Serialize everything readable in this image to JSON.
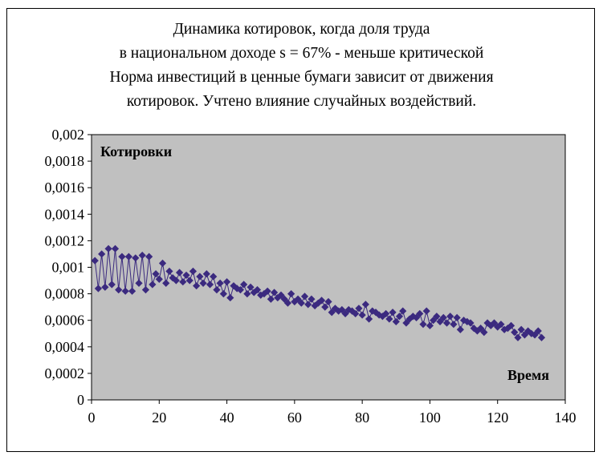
{
  "chart_data": {
    "type": "line",
    "title_lines": [
      "Динамика котировок, когда доля труда",
      "в национальном доходе s = 67% - меньше критической",
      "Норма инвестиций в ценные бумаги зависит от движения",
      "котировок. Учтено влияние случайных воздействий."
    ],
    "ylabel": "Котировки",
    "xlabel": "Время",
    "xlim": [
      0,
      140
    ],
    "ylim": [
      0,
      0.002
    ],
    "x_ticks": [
      "0",
      "20",
      "40",
      "60",
      "80",
      "100",
      "120",
      "140"
    ],
    "y_ticks": [
      "0",
      "0,0002",
      "0,0004",
      "0,0006",
      "0,0008",
      "0,001",
      "0,0012",
      "0,0014",
      "0,0016",
      "0,0018",
      "0,002"
    ],
    "grid": false,
    "plot_background": "#c0c0c0",
    "series_color": "#3b2a7f",
    "marker": "diamond",
    "series": [
      {
        "x": [
          1,
          2,
          3,
          4,
          5,
          6,
          7,
          8,
          9,
          10,
          11,
          12,
          13,
          14,
          15,
          16,
          17,
          18,
          19,
          20,
          21,
          22,
          23,
          24,
          25,
          26,
          27,
          28,
          29,
          30,
          31,
          32,
          33,
          34,
          35,
          36,
          37,
          38,
          39,
          40,
          41,
          42,
          43,
          44,
          45,
          46,
          47,
          48,
          49,
          50,
          51,
          52,
          53,
          54,
          55,
          56,
          57,
          58,
          59,
          60,
          61,
          62,
          63,
          64,
          65,
          66,
          67,
          68,
          69,
          70,
          71,
          72,
          73,
          74,
          75,
          76,
          77,
          78,
          79,
          80,
          81,
          82,
          83,
          84,
          85,
          86,
          87,
          88,
          89,
          90,
          91,
          92,
          93,
          94,
          95,
          96,
          97,
          98,
          99,
          100,
          101,
          102,
          103,
          104,
          105,
          106,
          107,
          108,
          109,
          110,
          111,
          112,
          113,
          114,
          115,
          116,
          117,
          118,
          119,
          120,
          121,
          122,
          123,
          124,
          125,
          126,
          127,
          128,
          129,
          130,
          131,
          132,
          133
        ],
        "values": [
          0.00105,
          0.00084,
          0.0011,
          0.00085,
          0.00114,
          0.00087,
          0.00114,
          0.00083,
          0.00108,
          0.00082,
          0.00108,
          0.00082,
          0.00107,
          0.00088,
          0.00109,
          0.00083,
          0.00108,
          0.00087,
          0.00095,
          0.00091,
          0.00103,
          0.00088,
          0.00097,
          0.00092,
          0.0009,
          0.00096,
          0.00089,
          0.00094,
          0.0009,
          0.00097,
          0.00086,
          0.00093,
          0.00088,
          0.00095,
          0.00087,
          0.00093,
          0.00083,
          0.00088,
          0.0008,
          0.00089,
          0.00077,
          0.00086,
          0.00084,
          0.00083,
          0.00087,
          0.0008,
          0.00085,
          0.00081,
          0.00083,
          0.00079,
          0.0008,
          0.00082,
          0.00076,
          0.00081,
          0.00077,
          0.00079,
          0.00076,
          0.00073,
          0.0008,
          0.00074,
          0.00076,
          0.00073,
          0.00078,
          0.00072,
          0.00076,
          0.00071,
          0.00073,
          0.00075,
          0.0007,
          0.00074,
          0.00066,
          0.00069,
          0.00067,
          0.00068,
          0.00065,
          0.00068,
          0.00067,
          0.00065,
          0.00069,
          0.00064,
          0.00072,
          0.00061,
          0.00067,
          0.00066,
          0.00064,
          0.00063,
          0.00065,
          0.00061,
          0.00066,
          0.00059,
          0.00063,
          0.00067,
          0.00058,
          0.00061,
          0.00063,
          0.00062,
          0.00065,
          0.00057,
          0.00067,
          0.00056,
          0.0006,
          0.00063,
          0.00059,
          0.00062,
          0.00058,
          0.00063,
          0.00057,
          0.00062,
          0.00053,
          0.0006,
          0.00059,
          0.00058,
          0.00054,
          0.00052,
          0.00054,
          0.00051,
          0.00058,
          0.00056,
          0.00058,
          0.00055,
          0.00057,
          0.00053,
          0.00054,
          0.00056,
          0.00051,
          0.00047,
          0.00053,
          0.00049,
          0.00052,
          0.0005,
          0.00049,
          0.00052,
          0.00047
        ]
      }
    ]
  }
}
